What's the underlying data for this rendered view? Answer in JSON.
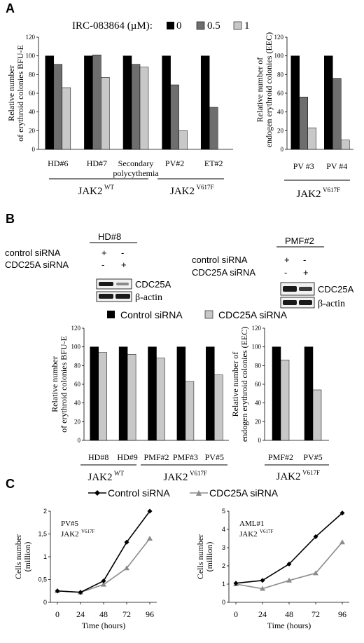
{
  "panels": {
    "A": "A",
    "B": "B",
    "C": "C"
  },
  "colors": {
    "black": "#000000",
    "dark_gray": "#6e6e6e",
    "light_gray": "#c8c8c8",
    "line_gray": "#8c8c8c",
    "band": "#1a1a1a",
    "band_faint": "#8a8a8a"
  },
  "panel_a": {
    "legend_title": "IRC-083864 (µM):",
    "legend_items": [
      "0",
      "0.5",
      "1"
    ]
  },
  "panel_b": {
    "blot1": {
      "sample": "HD#8",
      "rows": [
        {
          "label": "control siRNA",
          "marks": [
            "+",
            "-"
          ]
        },
        {
          "label": "CDC25A siRNA",
          "marks": [
            "-",
            "+"
          ]
        }
      ],
      "bands": [
        "CDC25A",
        "β-actin"
      ]
    },
    "blot2": {
      "sample": "PMF#2",
      "rows": [
        {
          "label": "control siRNA",
          "marks": [
            "+",
            "-"
          ]
        },
        {
          "label": "CDC25A siRNA",
          "marks": [
            "-",
            "+"
          ]
        }
      ],
      "bands": [
        "CDC25A",
        "β-actin"
      ]
    },
    "legend_items": [
      "Control siRNA",
      "CDC25A siRNA"
    ]
  },
  "panel_c": {
    "legend_items": [
      "Control siRNA",
      "CDC25A siRNA"
    ]
  },
  "chart_data": [
    {
      "id": "A-left",
      "type": "bar",
      "categories": [
        "HD#6",
        "HD#7",
        "Secondary polycythemia",
        "PV#2",
        "ET#2"
      ],
      "series": [
        {
          "name": "0",
          "values": [
            100,
            100,
            100,
            100,
            100
          ]
        },
        {
          "name": "0.5",
          "values": [
            91,
            101,
            91,
            69,
            45
          ]
        },
        {
          "name": "1",
          "values": [
            66,
            77,
            88,
            20,
            null
          ]
        }
      ],
      "ylabel": "Relative number of erythroid colonies BFU-E",
      "ylim": [
        0,
        120
      ],
      "yticks": [
        0,
        20,
        40,
        60,
        80,
        100,
        120
      ],
      "groups": [
        {
          "label": "JAK2",
          "sup": "WT",
          "categories": [
            "HD#6",
            "HD#7",
            "Secondary polycythemia"
          ]
        },
        {
          "label": "JAK2",
          "sup": "V617F",
          "categories": [
            "PV#2",
            "ET#2"
          ]
        }
      ]
    },
    {
      "id": "A-right",
      "type": "bar",
      "categories": [
        "PV #3",
        "PV #4"
      ],
      "series": [
        {
          "name": "0",
          "values": [
            100,
            100
          ]
        },
        {
          "name": "0.5",
          "values": [
            56,
            76
          ]
        },
        {
          "name": "1",
          "values": [
            23,
            10
          ]
        }
      ],
      "ylabel": "Relative number of endogen erythroid colonies (EEC)",
      "ylim": [
        0,
        120
      ],
      "yticks": [
        0,
        20,
        40,
        60,
        80,
        100,
        120
      ],
      "groups": [
        {
          "label": "JAK2",
          "sup": "V617F",
          "categories": [
            "PV #3",
            "PV #4"
          ]
        }
      ]
    },
    {
      "id": "B-left",
      "type": "bar",
      "categories": [
        "HD#8",
        "HD#9",
        "PMF#2",
        "PMF#3",
        "PV#5"
      ],
      "series": [
        {
          "name": "Control siRNA",
          "values": [
            100,
            100,
            100,
            100,
            100
          ]
        },
        {
          "name": "CDC25A siRNA",
          "values": [
            94,
            92,
            88,
            63,
            70
          ]
        }
      ],
      "ylabel": "Relative number of erythroid colonies BFU-E",
      "ylim": [
        0,
        120
      ],
      "yticks": [
        0,
        20,
        40,
        60,
        80,
        100,
        120
      ],
      "groups": [
        {
          "label": "JAK2",
          "sup": "WT",
          "categories": [
            "HD#8",
            "HD#9"
          ]
        },
        {
          "label": "JAK2",
          "sup": "V617F",
          "categories": [
            "PMF#2",
            "PMF#3",
            "PV#5"
          ]
        }
      ]
    },
    {
      "id": "B-right",
      "type": "bar",
      "categories": [
        "PMF#2",
        "PV#5"
      ],
      "series": [
        {
          "name": "Control siRNA",
          "values": [
            100,
            100
          ]
        },
        {
          "name": "CDC25A siRNA",
          "values": [
            86,
            54
          ]
        }
      ],
      "ylabel": "Relative number of endogen erythroid colonies (EEC)",
      "ylim": [
        0,
        120
      ],
      "yticks": [
        0,
        20,
        40,
        60,
        80,
        100,
        120
      ],
      "groups": [
        {
          "label": "JAK2",
          "sup": "V617F",
          "categories": [
            "PMF#2",
            "PV#5"
          ]
        }
      ]
    },
    {
      "id": "C-left",
      "type": "line",
      "x": [
        0,
        24,
        48,
        72,
        96
      ],
      "series": [
        {
          "name": "Control siRNA",
          "values": [
            0.25,
            0.22,
            0.47,
            1.32,
            2.0
          ]
        },
        {
          "name": "CDC25A siRNA",
          "values": [
            0.25,
            0.22,
            0.39,
            0.75,
            1.4
          ]
        }
      ],
      "annotation": "PV#5",
      "annotation_gene": "JAK2",
      "annotation_sup": "V617F",
      "xlabel": "Time (hours)",
      "ylabel": "Cells number (million)",
      "ylim": [
        0,
        2
      ],
      "yticks": [
        0,
        0.5,
        1,
        1.5,
        2
      ],
      "ytick_labels": [
        "0",
        "0,5",
        "1",
        "1,5",
        "2"
      ]
    },
    {
      "id": "C-right",
      "type": "line",
      "x": [
        0,
        24,
        48,
        72,
        96
      ],
      "series": [
        {
          "name": "Control siRNA",
          "values": [
            1.05,
            1.2,
            2.1,
            3.6,
            4.9
          ]
        },
        {
          "name": "CDC25A siRNA",
          "values": [
            1.0,
            0.75,
            1.2,
            1.6,
            3.3
          ]
        }
      ],
      "annotation": "AML#1",
      "annotation_gene": "JAK2",
      "annotation_sup": "V617F",
      "xlabel": "Time (hours)",
      "ylabel": "Cells number (million)",
      "ylim": [
        0,
        5
      ],
      "yticks": [
        0,
        1,
        2,
        3,
        4,
        5
      ],
      "ytick_labels": [
        "0",
        "1",
        "2",
        "3",
        "4",
        "5"
      ]
    }
  ]
}
